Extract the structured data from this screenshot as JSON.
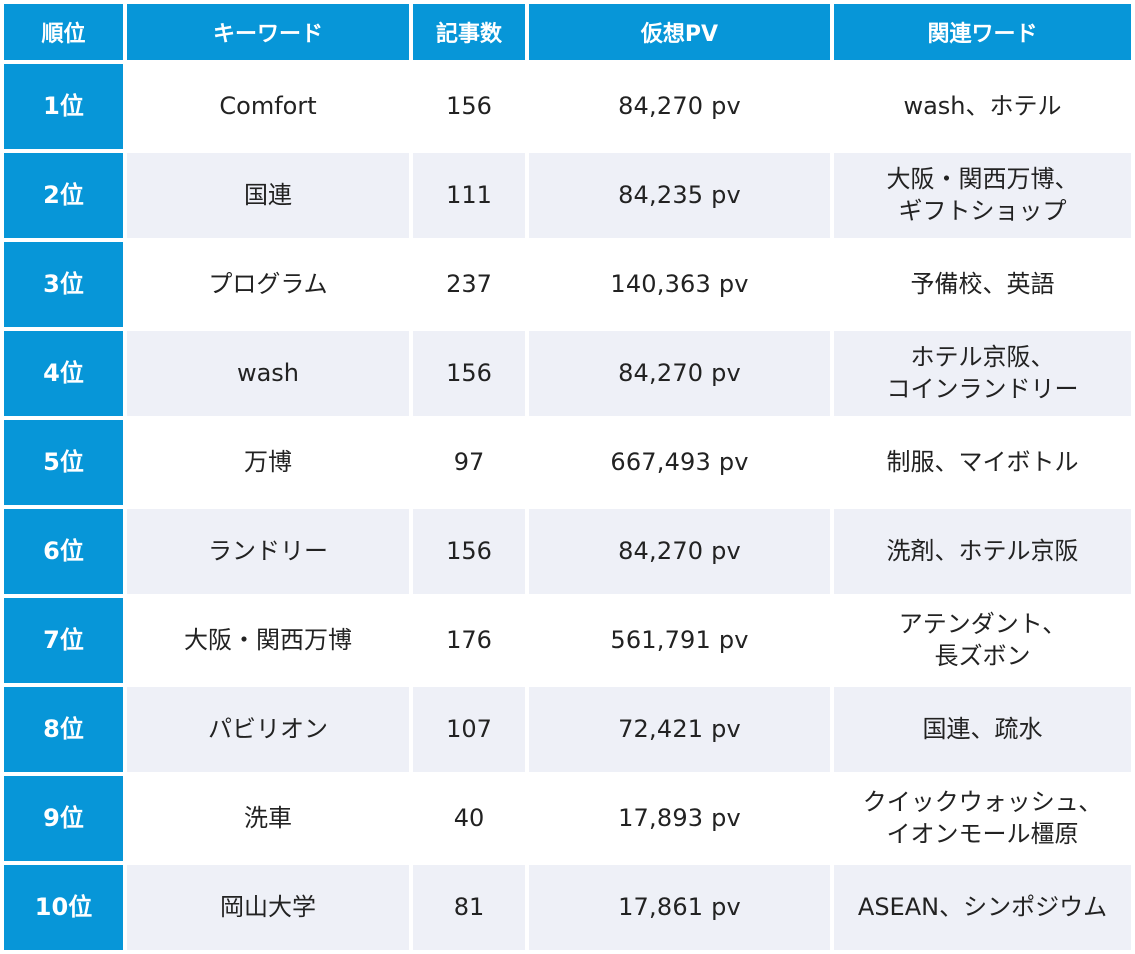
{
  "colors": {
    "header_bg": "#0796d8",
    "header_text": "#ffffff",
    "row_alt_bg": "#eef0f7",
    "row_bg": "#ffffff",
    "body_text": "#222222"
  },
  "chart_data": {
    "type": "table",
    "columns": [
      "順位",
      "キーワード",
      "記事数",
      "仮想PV",
      "関連ワード"
    ],
    "rows": [
      {
        "rank": "1位",
        "keyword": "Comfort",
        "articles": "156",
        "pv": "84,270 pv",
        "related": "wash、ホテル"
      },
      {
        "rank": "2位",
        "keyword": "国連",
        "articles": "111",
        "pv": "84,235 pv",
        "related": "大阪・関西万博、\nギフトショップ"
      },
      {
        "rank": "3位",
        "keyword": "プログラム",
        "articles": "237",
        "pv": "140,363 pv",
        "related": "予備校、英語"
      },
      {
        "rank": "4位",
        "keyword": "wash",
        "articles": "156",
        "pv": "84,270 pv",
        "related": "ホテル京阪、\nコインランドリー"
      },
      {
        "rank": "5位",
        "keyword": "万博",
        "articles": "97",
        "pv": "667,493 pv",
        "related": "制服、マイボトル"
      },
      {
        "rank": "6位",
        "keyword": "ランドリー",
        "articles": "156",
        "pv": "84,270 pv",
        "related": "洗剤、ホテル京阪"
      },
      {
        "rank": "7位",
        "keyword": "大阪・関西万博",
        "articles": "176",
        "pv": "561,791 pv",
        "related": "アテンダント、\n長ズボン"
      },
      {
        "rank": "8位",
        "keyword": "パビリオン",
        "articles": "107",
        "pv": "72,421 pv",
        "related": "国連、疏水"
      },
      {
        "rank": "9位",
        "keyword": "洗車",
        "articles": "40",
        "pv": "17,893 pv",
        "related": "クイックウォッシュ、\nイオンモール橿原"
      },
      {
        "rank": "10位",
        "keyword": "岡山大学",
        "articles": "81",
        "pv": "17,861 pv",
        "related": "ASEAN、シンポジウム"
      }
    ]
  }
}
